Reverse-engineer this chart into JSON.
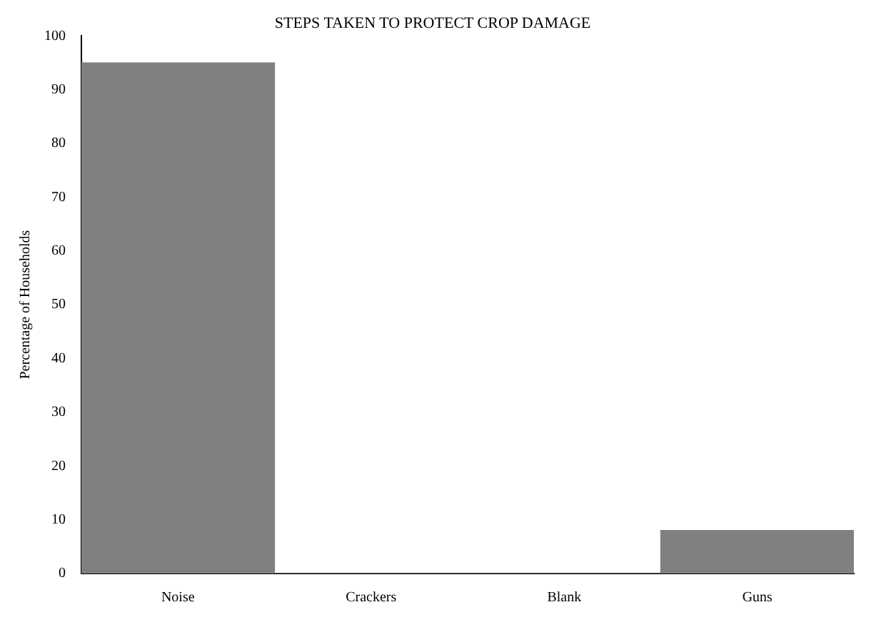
{
  "chart_data": {
    "type": "bar",
    "title": "STEPS TAKEN TO PROTECT CROP DAMAGE",
    "ylabel": "Percentage of Households",
    "categories": [
      "Noise",
      "Crackers",
      "Blank",
      "Guns"
    ],
    "values": [
      95,
      0,
      0,
      8
    ],
    "color": "#808080",
    "ylim": [
      0,
      100
    ],
    "yticks": [
      0,
      10,
      20,
      30,
      40,
      50,
      60,
      70,
      80,
      90,
      100
    ],
    "grid": false,
    "legend": false
  }
}
